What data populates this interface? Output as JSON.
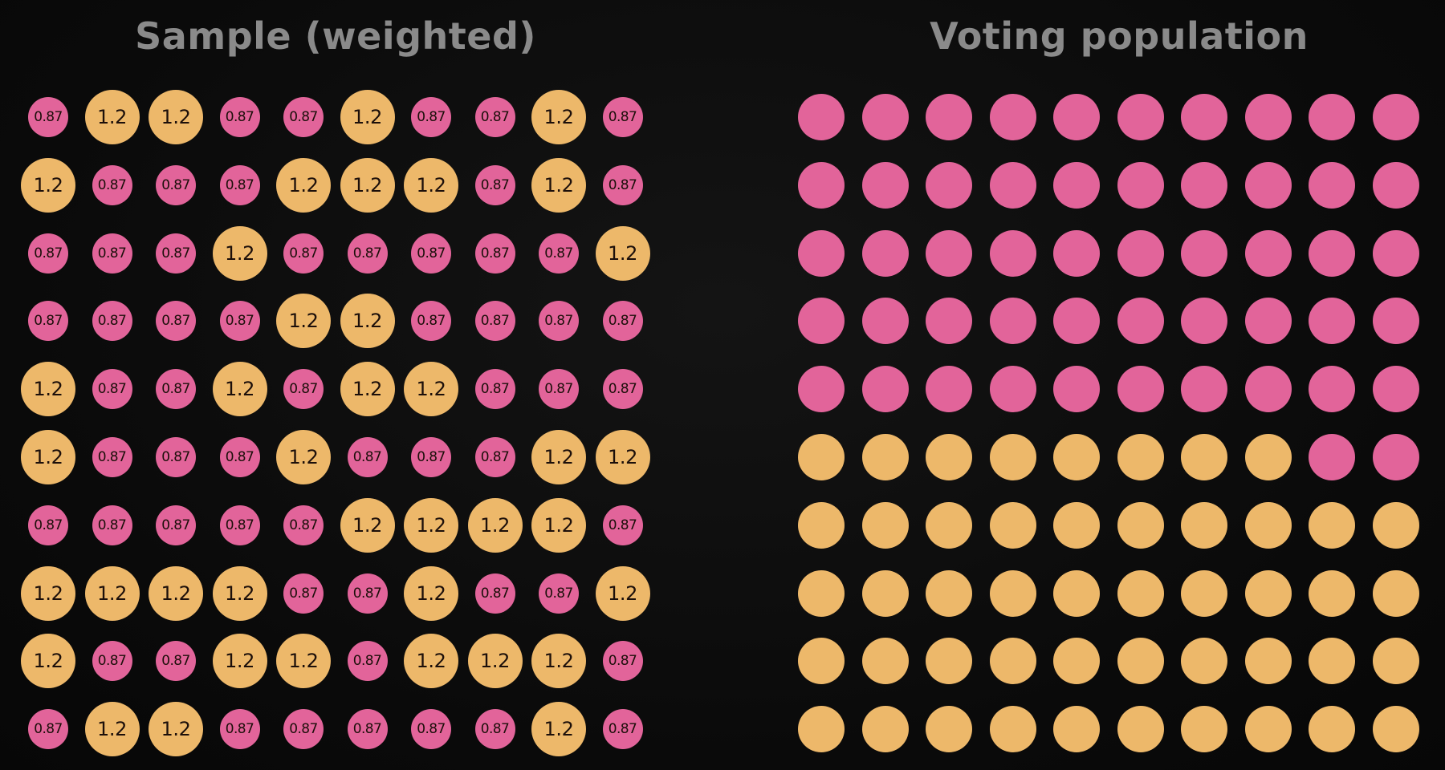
{
  "titles": {
    "sample": "Sample (weighted)",
    "population": "Voting population"
  },
  "colors": {
    "background": "#0a0a0a",
    "title": "#8a8a8a",
    "pink": "#e2649a",
    "orange": "#edb86a",
    "label": "#1c0f0a"
  },
  "weights": {
    "pink": "0.87",
    "orange": "1.2"
  },
  "legend_map": {
    "P": "pink",
    "O": "orange"
  },
  "sample_grid": [
    "POOPPOPPOP",
    "OPPPOOOPOP",
    "PPPOPPPPPO",
    "PPPPOOPPPP",
    "OPPOPOOPPP",
    "OPPPOPPPOO",
    "PPPPPOOOOP",
    "OOOOPPOPPO",
    "OPPOOPOOOP",
    "POOPPPPPOP"
  ],
  "population_grid": [
    "PPPPPPPPPP",
    "PPPPPPPPPP",
    "PPPPPPPPPP",
    "PPPPPPPPPP",
    "PPPPPPPPPP",
    "OOOOOOOOPP",
    "OOOOOOOOOO",
    "OOOOOOOOOO",
    "OOOOOOOOOO",
    "OOOOOOOOOO"
  ]
}
